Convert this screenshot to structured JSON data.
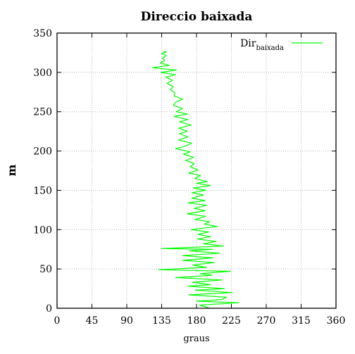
{
  "chart_data": {
    "type": "line",
    "title": "Direccio baixada",
    "xlabel": "graus",
    "ylabel": "m",
    "xlim": [
      0,
      360
    ],
    "ylim": [
      0,
      350
    ],
    "xticks": [
      0,
      45,
      90,
      135,
      180,
      225,
      270,
      315,
      360
    ],
    "yticks": [
      0,
      50,
      100,
      150,
      200,
      250,
      300,
      350
    ],
    "grid": true,
    "legend_position": "top-right",
    "series": [
      {
        "name": "Dir",
        "name_subscript": "baixada",
        "color": "#00ff00",
        "points": [
          [
            197,
            0
          ],
          [
            184,
            4
          ],
          [
            235,
            7
          ],
          [
            180,
            9
          ],
          [
            212,
            11
          ],
          [
            219,
            14
          ],
          [
            170,
            17
          ],
          [
            226,
            20
          ],
          [
            178,
            23
          ],
          [
            216,
            25
          ],
          [
            169,
            28
          ],
          [
            198,
            30
          ],
          [
            175,
            33
          ],
          [
            213,
            36
          ],
          [
            153,
            39
          ],
          [
            200,
            42
          ],
          [
            185,
            44
          ],
          [
            224,
            47
          ],
          [
            131,
            49
          ],
          [
            193,
            52
          ],
          [
            175,
            55
          ],
          [
            203,
            58
          ],
          [
            162,
            61
          ],
          [
            201,
            64
          ],
          [
            162,
            67
          ],
          [
            210,
            70
          ],
          [
            171,
            73
          ],
          [
            201,
            75
          ],
          [
            135,
            76
          ],
          [
            215,
            79
          ],
          [
            189,
            82
          ],
          [
            205,
            85
          ],
          [
            181,
            88
          ],
          [
            198,
            91
          ],
          [
            182,
            94
          ],
          [
            196,
            97
          ],
          [
            173,
            100
          ],
          [
            207,
            104
          ],
          [
            190,
            107
          ],
          [
            197,
            110
          ],
          [
            178,
            113
          ],
          [
            192,
            117
          ],
          [
            168,
            120
          ],
          [
            191,
            124
          ],
          [
            177,
            127
          ],
          [
            193,
            131
          ],
          [
            169,
            134
          ],
          [
            191,
            137
          ],
          [
            174,
            140
          ],
          [
            189,
            144
          ],
          [
            174,
            147
          ],
          [
            192,
            150
          ],
          [
            176,
            153
          ],
          [
            198,
            156
          ],
          [
            180,
            159
          ],
          [
            194,
            161
          ],
          [
            178,
            165
          ],
          [
            185,
            169
          ],
          [
            170,
            172
          ],
          [
            182,
            176
          ],
          [
            172,
            180
          ],
          [
            177,
            184
          ],
          [
            166,
            188
          ],
          [
            176,
            192
          ],
          [
            163,
            196
          ],
          [
            172,
            199
          ],
          [
            153,
            203
          ],
          [
            165,
            206
          ],
          [
            174,
            210
          ],
          [
            157,
            214
          ],
          [
            169,
            218
          ],
          [
            158,
            222
          ],
          [
            168,
            225
          ],
          [
            157,
            229
          ],
          [
            173,
            233
          ],
          [
            158,
            237
          ],
          [
            169,
            240
          ],
          [
            151,
            244
          ],
          [
            168,
            247
          ],
          [
            154,
            250
          ],
          [
            162,
            254
          ],
          [
            150,
            258
          ],
          [
            153,
            262
          ],
          [
            162,
            266
          ],
          [
            151,
            270
          ],
          [
            152,
            274
          ],
          [
            146,
            278
          ],
          [
            150,
            282
          ],
          [
            142,
            286
          ],
          [
            149,
            290
          ],
          [
            140,
            294
          ],
          [
            153,
            297
          ],
          [
            134,
            300
          ],
          [
            154,
            303
          ],
          [
            123,
            306
          ],
          [
            145,
            309
          ],
          [
            133,
            312
          ],
          [
            139,
            315
          ],
          [
            136,
            318
          ],
          [
            141,
            321
          ],
          [
            135,
            324
          ],
          [
            141,
            326
          ],
          [
            137,
            327
          ]
        ]
      }
    ]
  }
}
